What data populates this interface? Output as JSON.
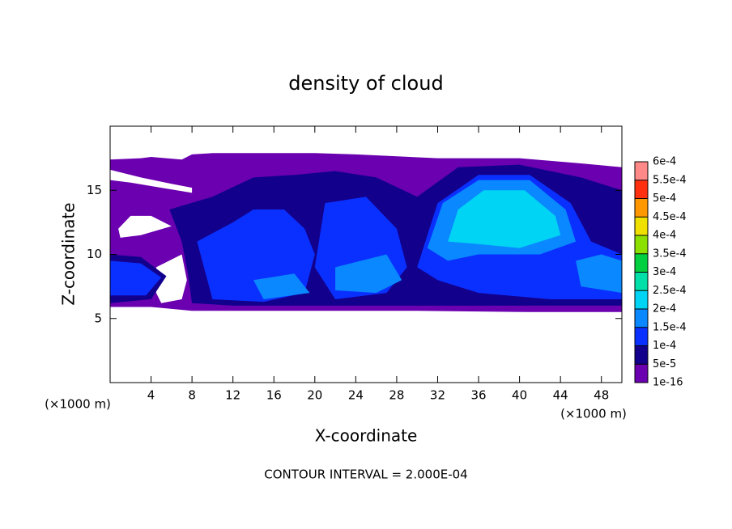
{
  "chart_data": {
    "type": "contour",
    "title": "density of cloud",
    "x_label": "X-coordinate",
    "y_label": "Z-coordinate",
    "x_unit": "(×1000 m)",
    "y_unit": "(×1000 m)",
    "footnote": "CONTOUR INTERVAL = 2.000E-04",
    "xlim": [
      0,
      50
    ],
    "xticks": [
      4,
      8,
      12,
      16,
      20,
      24,
      28,
      32,
      36,
      40,
      44,
      48
    ],
    "ylim": [
      0,
      20
    ],
    "yticks": [
      5,
      10,
      15
    ],
    "colorbar": {
      "ticks": [
        {
          "value": 1e-16,
          "label": "1e-16"
        },
        {
          "value": 5e-05,
          "label": "5e-5"
        },
        {
          "value": 0.0001,
          "label": "1e-4"
        },
        {
          "value": 0.00015,
          "label": "1.5e-4"
        },
        {
          "value": 0.0002,
          "label": "2e-4"
        },
        {
          "value": 0.00025,
          "label": "2.5e-4"
        },
        {
          "value": 0.0003,
          "label": "3e-4"
        },
        {
          "value": 0.00035,
          "label": "3.5e-4"
        },
        {
          "value": 0.0004,
          "label": "4e-4"
        },
        {
          "value": 0.00045,
          "label": "4.5e-4"
        },
        {
          "value": 0.0005,
          "label": "5e-4"
        },
        {
          "value": 0.00055,
          "label": "5.5e-4"
        },
        {
          "value": 0.0006,
          "label": "6e-4"
        }
      ],
      "colors": [
        "#6a00b0",
        "#12008c",
        "#0a30ff",
        "#0a88ff",
        "#00d4f4",
        "#00e0a8",
        "#00d040",
        "#8ce000",
        "#f0e000",
        "#ff9800",
        "#ff3010",
        "#ff8888"
      ]
    }
  }
}
